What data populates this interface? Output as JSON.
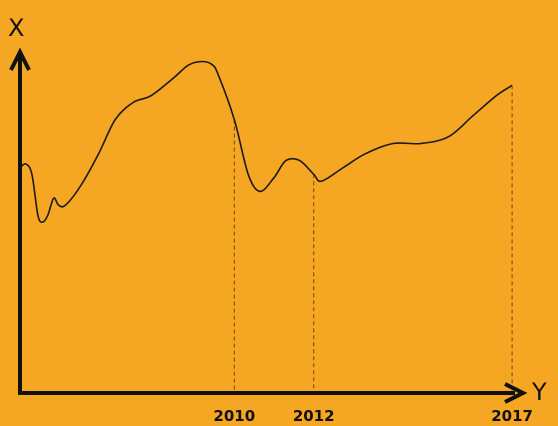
{
  "chart_data": {
    "type": "line",
    "xlabel": "Y",
    "ylabel": "X",
    "tick_labels": [
      "2010",
      "2012",
      "2017"
    ],
    "series": [
      {
        "points": [
          {
            "x": 2004.6,
            "y": 0.66
          },
          {
            "x": 2004.75,
            "y": 0.67
          },
          {
            "x": 2004.9,
            "y": 0.64
          },
          {
            "x": 2005.05,
            "y": 0.52
          },
          {
            "x": 2005.17,
            "y": 0.5
          },
          {
            "x": 2005.3,
            "y": 0.52
          },
          {
            "x": 2005.45,
            "y": 0.57
          },
          {
            "x": 2005.57,
            "y": 0.55
          },
          {
            "x": 2005.75,
            "y": 0.55
          },
          {
            "x": 2006.15,
            "y": 0.61
          },
          {
            "x": 2006.58,
            "y": 0.7
          },
          {
            "x": 2007.0,
            "y": 0.8
          },
          {
            "x": 2007.45,
            "y": 0.85
          },
          {
            "x": 2007.9,
            "y": 0.87
          },
          {
            "x": 2008.45,
            "y": 0.92
          },
          {
            "x": 2008.85,
            "y": 0.96
          },
          {
            "x": 2009.2,
            "y": 0.97
          },
          {
            "x": 2009.45,
            "y": 0.96
          },
          {
            "x": 2009.6,
            "y": 0.93
          },
          {
            "x": 2010.0,
            "y": 0.8
          },
          {
            "x": 2010.35,
            "y": 0.64
          },
          {
            "x": 2010.65,
            "y": 0.59
          },
          {
            "x": 2011.0,
            "y": 0.63
          },
          {
            "x": 2011.3,
            "y": 0.68
          },
          {
            "x": 2011.65,
            "y": 0.68
          },
          {
            "x": 2012.0,
            "y": 0.64
          },
          {
            "x": 2012.2,
            "y": 0.62
          },
          {
            "x": 2012.75,
            "y": 0.66
          },
          {
            "x": 2013.3,
            "y": 0.7
          },
          {
            "x": 2014.0,
            "y": 0.73
          },
          {
            "x": 2014.7,
            "y": 0.73
          },
          {
            "x": 2015.4,
            "y": 0.75
          },
          {
            "x": 2016.0,
            "y": 0.81
          },
          {
            "x": 2016.6,
            "y": 0.87
          },
          {
            "x": 2017.0,
            "y": 0.9
          }
        ]
      }
    ],
    "xlim": [
      2004.6,
      2017.35
    ],
    "ylim": [
      0,
      1.15
    ],
    "dashed_guides": [
      2010,
      2012,
      2017
    ],
    "grid": false,
    "colors": {
      "background": "#f5a623",
      "line": "#1a1a1a",
      "axis": "#111111",
      "guide": "#6a4a16"
    }
  }
}
